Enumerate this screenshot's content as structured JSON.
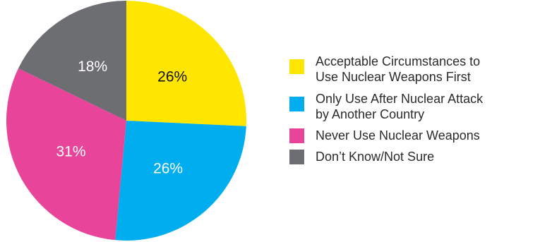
{
  "chart_data": {
    "type": "pie",
    "title": "",
    "slices": [
      {
        "label": "Acceptable Circumstances to Use Nuclear Weapons First",
        "lines": [
          "Acceptable Circumstances to",
          "Use Nuclear Weapons First"
        ],
        "value": 26,
        "value_label": "26%",
        "color": "#FFE600",
        "label_color": "#111111"
      },
      {
        "label": "Only Use After Nuclear Attack by Another Country",
        "lines": [
          "Only Use After Nuclear Attack",
          "by Another Country"
        ],
        "value": 26,
        "value_label": "26%",
        "color": "#00AEEF",
        "label_color": "#ffffff"
      },
      {
        "label": "Never Use Nuclear Weapons",
        "lines": [
          "Never Use Nuclear Weapons"
        ],
        "value": 31,
        "value_label": "31%",
        "color": "#E8449A",
        "label_color": "#ffffff"
      },
      {
        "label": "Don’t Know/Not Sure",
        "lines": [
          "Don’t Know/Not Sure"
        ],
        "value": 18,
        "value_label": "18%",
        "color": "#6D6E71",
        "label_color": "#ffffff"
      }
    ],
    "legend_placement": "right"
  }
}
